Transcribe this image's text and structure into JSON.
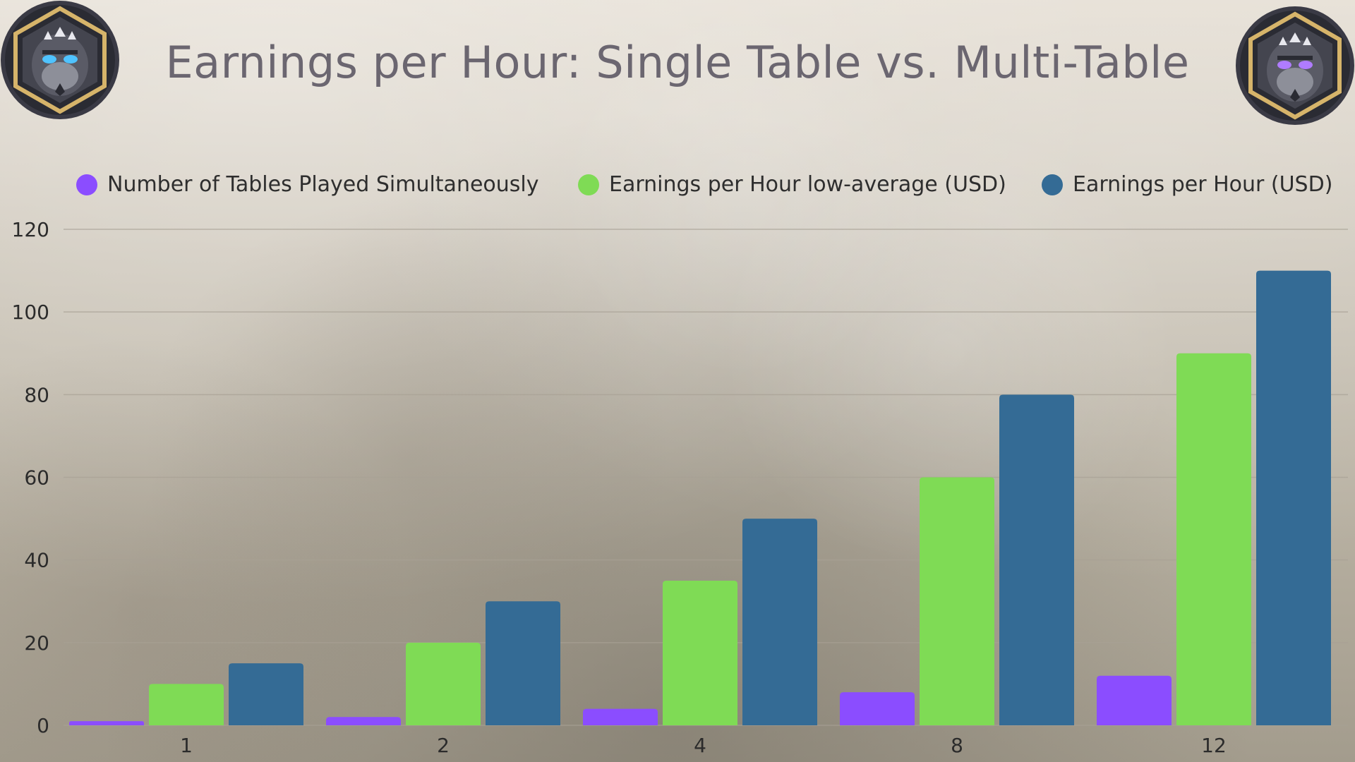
{
  "title": "Earnings per Hour: Single Table vs. Multi-Table",
  "logos": {
    "left_icon": "gorilla-poker-logo-icon",
    "right_icon": "gorilla-poker-logo-icon"
  },
  "colors": {
    "tables": "#8b4dff",
    "low_average": "#7fdb55",
    "earnings": "#346b95",
    "title": "#6b6670",
    "grid": "#a8a195"
  },
  "legend": [
    {
      "label": "Number of Tables Played Simultaneously",
      "color": "#8b4dff"
    },
    {
      "label": "Earnings per Hour low-average (USD)",
      "color": "#7fdb55"
    },
    {
      "label": "Earnings per Hour (USD)",
      "color": "#346b95"
    }
  ],
  "chart_data": {
    "type": "bar",
    "title": "Earnings per Hour: Single Table vs. Multi-Table",
    "xlabel": "",
    "ylabel": "",
    "categories": [
      "1",
      "2",
      "4",
      "8",
      "12"
    ],
    "series": [
      {
        "name": "Number of Tables Played Simultaneously",
        "color": "#8b4dff",
        "values": [
          1,
          2,
          4,
          8,
          12
        ]
      },
      {
        "name": "Earnings per Hour low-average (USD)",
        "color": "#7fdb55",
        "values": [
          10,
          20,
          35,
          60,
          90
        ]
      },
      {
        "name": "Earnings per Hour (USD)",
        "color": "#346b95",
        "values": [
          15,
          30,
          50,
          80,
          110
        ]
      }
    ],
    "ylim": [
      0,
      120
    ],
    "yticks": [
      0,
      20,
      40,
      60,
      80,
      100,
      120
    ],
    "grid": true,
    "legend_position": "top"
  }
}
